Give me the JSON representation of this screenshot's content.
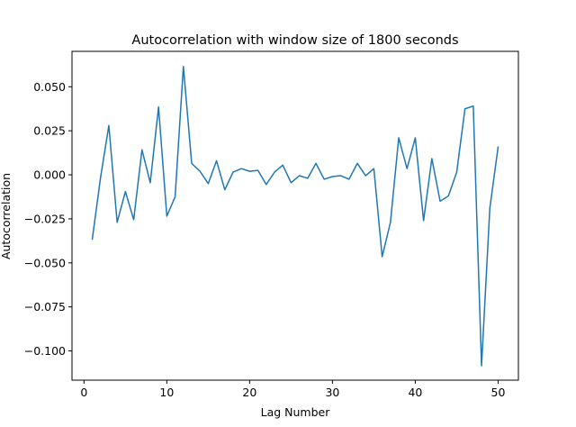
{
  "chart_data": {
    "type": "line",
    "title": "Autocorrelation with window size of 1800 seconds",
    "xlabel": "Lag Number",
    "ylabel": "Autocorrelation",
    "xlim": [
      -1.45,
      52.45
    ],
    "ylim": [
      -0.1166,
      0.0701
    ],
    "xticks": [
      0,
      10,
      20,
      30,
      40,
      50
    ],
    "xtick_labels": [
      "0",
      "10",
      "20",
      "30",
      "40",
      "50"
    ],
    "yticks": [
      0.05,
      0.025,
      0.0,
      -0.025,
      -0.05,
      -0.075,
      -0.1
    ],
    "ytick_labels": [
      "0.050",
      "0.025",
      "0.000",
      "−0.025",
      "−0.050",
      "−0.075",
      "−0.100"
    ],
    "grid": false,
    "series": [
      {
        "color": "#1f77b4",
        "x": [
          1,
          2,
          3,
          4,
          5,
          6,
          7,
          8,
          9,
          10,
          11,
          12,
          13,
          14,
          15,
          16,
          17,
          18,
          19,
          20,
          21,
          22,
          23,
          24,
          25,
          26,
          27,
          28,
          29,
          30,
          31,
          32,
          33,
          34,
          35,
          36,
          37,
          38,
          39,
          40,
          41,
          42,
          43,
          44,
          45,
          46,
          47,
          48,
          49,
          50
        ],
        "y": [
          -0.0365,
          -0.0015,
          0.028,
          -0.027,
          -0.0095,
          -0.0255,
          0.0142,
          -0.0045,
          0.0385,
          -0.0235,
          -0.0125,
          0.0615,
          0.0065,
          0.002,
          -0.005,
          0.008,
          -0.0085,
          0.0015,
          0.0035,
          0.002,
          0.0025,
          -0.0055,
          0.0015,
          0.0055,
          -0.0045,
          -0.0005,
          -0.002,
          0.0065,
          -0.0025,
          -0.001,
          -0.0005,
          -0.0025,
          0.0065,
          -0.0005,
          0.0035,
          -0.0465,
          -0.027,
          0.021,
          0.0035,
          0.021,
          -0.026,
          0.0092,
          -0.015,
          -0.012,
          0.0015,
          0.0375,
          0.039,
          -0.1085,
          -0.019,
          0.0158
        ]
      }
    ]
  }
}
